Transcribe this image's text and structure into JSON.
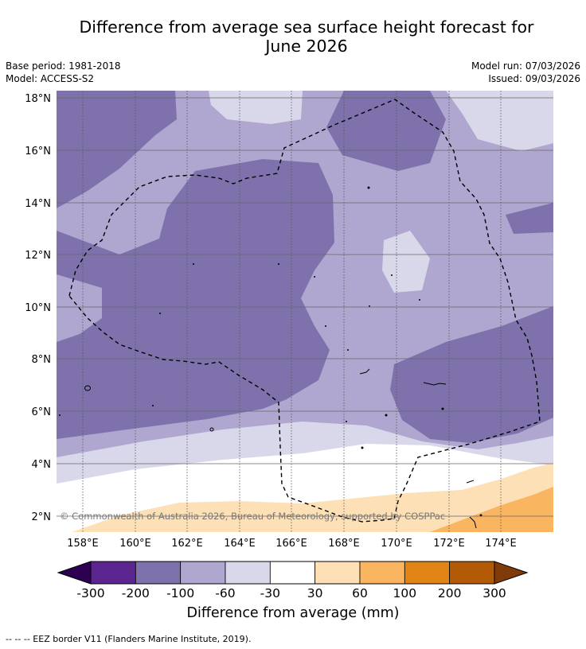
{
  "title_line1": "Difference from average sea surface height forecast for",
  "title_line2": "June 2026",
  "base_period": "Base period: 1981-2018",
  "model": "Model: ACCESS-S2",
  "model_run": "Model run: 07/03/2026",
  "issued": "Issued: 09/03/2026",
  "lat_labels": [
    "18°N",
    "16°N",
    "14°N",
    "12°N",
    "10°N",
    "8°N",
    "6°N",
    "4°N",
    "2°N"
  ],
  "lon_labels": [
    "158°E",
    "160°E",
    "162°E",
    "164°E",
    "166°E",
    "168°E",
    "170°E",
    "172°E",
    "174°E"
  ],
  "copyright": "© Commonwealth of Australia 2026, Bureau of Meteorology, supported by COSPPac",
  "colorbar": {
    "ticks": [
      "-300",
      "-200",
      "-100",
      "-60",
      "-30",
      "30",
      "60",
      "100",
      "200",
      "300"
    ],
    "colors": [
      "#5b2590",
      "#7f72ac",
      "#afa7cf",
      "#d9d8ea",
      "#ffffff",
      "#fde0b6",
      "#f9b560",
      "#e28517",
      "#b35a06"
    ],
    "under_color": "#2d0052",
    "over_color": "#7f3b08",
    "title": "Difference from average (mm)"
  },
  "legend_text": "--  --  -- EEZ border V11 (Flanders Marine Institute, 2019)."
}
